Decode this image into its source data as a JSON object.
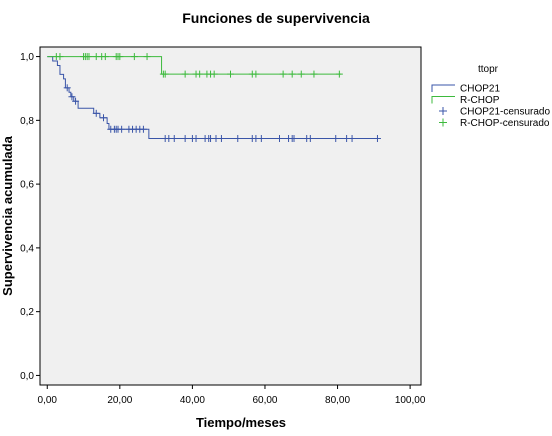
{
  "chart_data": {
    "type": "line",
    "subtype": "kaplan-meier",
    "title": "Funciones de supervivencia",
    "xlabel": "Tiempo/meses",
    "ylabel": "Supervivencia acumulada",
    "xlim": [
      -2,
      103
    ],
    "ylim": [
      -0.03,
      1.03
    ],
    "xticks": [
      0,
      20,
      40,
      60,
      80,
      100
    ],
    "xtick_labels": [
      "0,00",
      "20,00",
      "40,00",
      "60,00",
      "80,00",
      "100,00"
    ],
    "yticks": [
      0,
      0.2,
      0.4,
      0.6,
      0.8,
      1.0
    ],
    "ytick_labels": [
      "0,0",
      "0,2",
      "0,4",
      "0,6",
      "0,8",
      "1,0"
    ],
    "grid": false,
    "background": "#f0f0f0",
    "legend": {
      "title": "ttopr",
      "position": "right",
      "entries": [
        "CHOP21",
        "R-CHOP",
        "CHOP21-censurado",
        "R-CHOP-censurado"
      ]
    },
    "series": [
      {
        "name": "CHOP21",
        "color": "#3a55a8",
        "steps": [
          [
            0,
            1.0
          ],
          [
            1.5,
            0.986
          ],
          [
            2.8,
            0.972
          ],
          [
            3.5,
            0.944
          ],
          [
            4.5,
            0.93
          ],
          [
            5.0,
            0.902
          ],
          [
            6.0,
            0.888
          ],
          [
            6.5,
            0.874
          ],
          [
            7.3,
            0.86
          ],
          [
            8.5,
            0.838
          ],
          [
            12.8,
            0.822
          ],
          [
            14.5,
            0.808
          ],
          [
            16.5,
            0.79
          ],
          [
            17.0,
            0.772
          ],
          [
            28.0,
            0.743
          ]
        ],
        "end_x": 91,
        "censored_x": [
          5.5,
          6.8,
          7.8,
          13.5,
          15.5,
          17.5,
          18.5,
          19.0,
          19.5,
          20.5,
          22.5,
          23.5,
          24.5,
          25.5,
          26.5,
          32.5,
          33.5,
          35.0,
          38.0,
          40.0,
          41.0,
          43.5,
          44.5,
          45.0,
          46.5,
          48.0,
          52.5,
          56.5,
          57.5,
          59.0,
          64.0,
          66.5,
          67.5,
          68.0,
          71.5,
          72.5,
          79.5,
          82.5,
          84.0,
          91.0
        ]
      },
      {
        "name": "R-CHOP",
        "color": "#3dba3d",
        "steps": [
          [
            0,
            1.0
          ],
          [
            31.5,
            0.945
          ]
        ],
        "end_x": 81,
        "censored_x": [
          2.5,
          3.5,
          10.0,
          10.5,
          11.0,
          11.5,
          13.5,
          15.0,
          16.0,
          19.0,
          19.5,
          20.0,
          24.0,
          27.5,
          32.0,
          32.5,
          38.0,
          41.0,
          42.0,
          44.0,
          45.0,
          46.0,
          50.5,
          56.5,
          57.5,
          65.0,
          67.5,
          70.0,
          73.5,
          80.5
        ]
      }
    ]
  }
}
